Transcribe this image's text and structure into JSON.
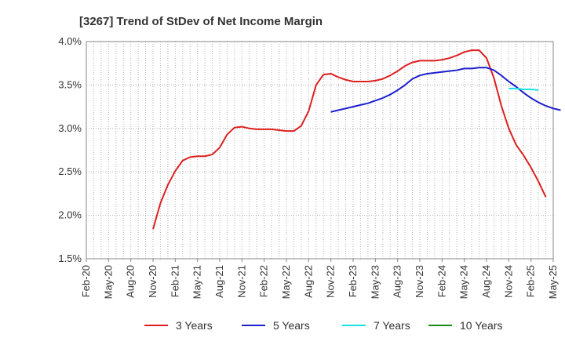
{
  "chart_data": {
    "type": "line",
    "title": "[3267]  Trend of StDev of Net Income Margin",
    "xlabel": "",
    "ylabel": "",
    "ylim": [
      1.5,
      4.0
    ],
    "y_ticks": [
      "1.5%",
      "2.0%",
      "2.5%",
      "3.0%",
      "3.5%",
      "4.0%"
    ],
    "y_tick_values": [
      1.5,
      2.0,
      2.5,
      3.0,
      3.5,
      4.0
    ],
    "x_tick_labels": [
      "Feb-20",
      "May-20",
      "Aug-20",
      "Nov-20",
      "Feb-21",
      "May-21",
      "Aug-21",
      "Nov-21",
      "Feb-22",
      "May-22",
      "Aug-22",
      "Nov-22",
      "Feb-23",
      "May-23",
      "Aug-23",
      "Nov-23",
      "Feb-24",
      "May-24",
      "Aug-24",
      "Nov-24",
      "Feb-25",
      "May-25"
    ],
    "grid": true,
    "legend_position": "bottom",
    "series": [
      {
        "name": "3 Years",
        "color": "#dd1f1f",
        "start_month": "Nov-20",
        "values": [
          1.84,
          2.14,
          2.35,
          2.51,
          2.63,
          2.67,
          2.68,
          2.68,
          2.7,
          2.78,
          2.93,
          3.01,
          3.02,
          3.0,
          2.99,
          2.99,
          2.99,
          2.98,
          2.97,
          2.97,
          3.03,
          3.2,
          3.5,
          3.62,
          3.63,
          3.59,
          3.56,
          3.54,
          3.54,
          3.54,
          3.55,
          3.57,
          3.61,
          3.66,
          3.72,
          3.76,
          3.78,
          3.78,
          3.78,
          3.79,
          3.81,
          3.84,
          3.88,
          3.9,
          3.9,
          3.81,
          3.58,
          3.26,
          3.0,
          2.81,
          2.69,
          2.55,
          2.39,
          2.21
        ]
      },
      {
        "name": "5 Years",
        "color": "#1b1fcc",
        "start_month": "Nov-22",
        "values": [
          3.19,
          3.21,
          3.23,
          3.25,
          3.27,
          3.29,
          3.32,
          3.35,
          3.39,
          3.44,
          3.5,
          3.57,
          3.61,
          3.63,
          3.64,
          3.65,
          3.66,
          3.67,
          3.69,
          3.69,
          3.7,
          3.7,
          3.67,
          3.61,
          3.54,
          3.48,
          3.41,
          3.35,
          3.3,
          3.26,
          3.23,
          3.21
        ]
      },
      {
        "name": "7 Years",
        "color": "#19e0e6",
        "start_month": "Nov-24",
        "values": [
          3.46,
          3.46,
          3.45,
          3.45,
          3.44
        ]
      },
      {
        "name": "10 Years",
        "color": "#1a8c1a",
        "start_month": "",
        "values": []
      }
    ]
  }
}
